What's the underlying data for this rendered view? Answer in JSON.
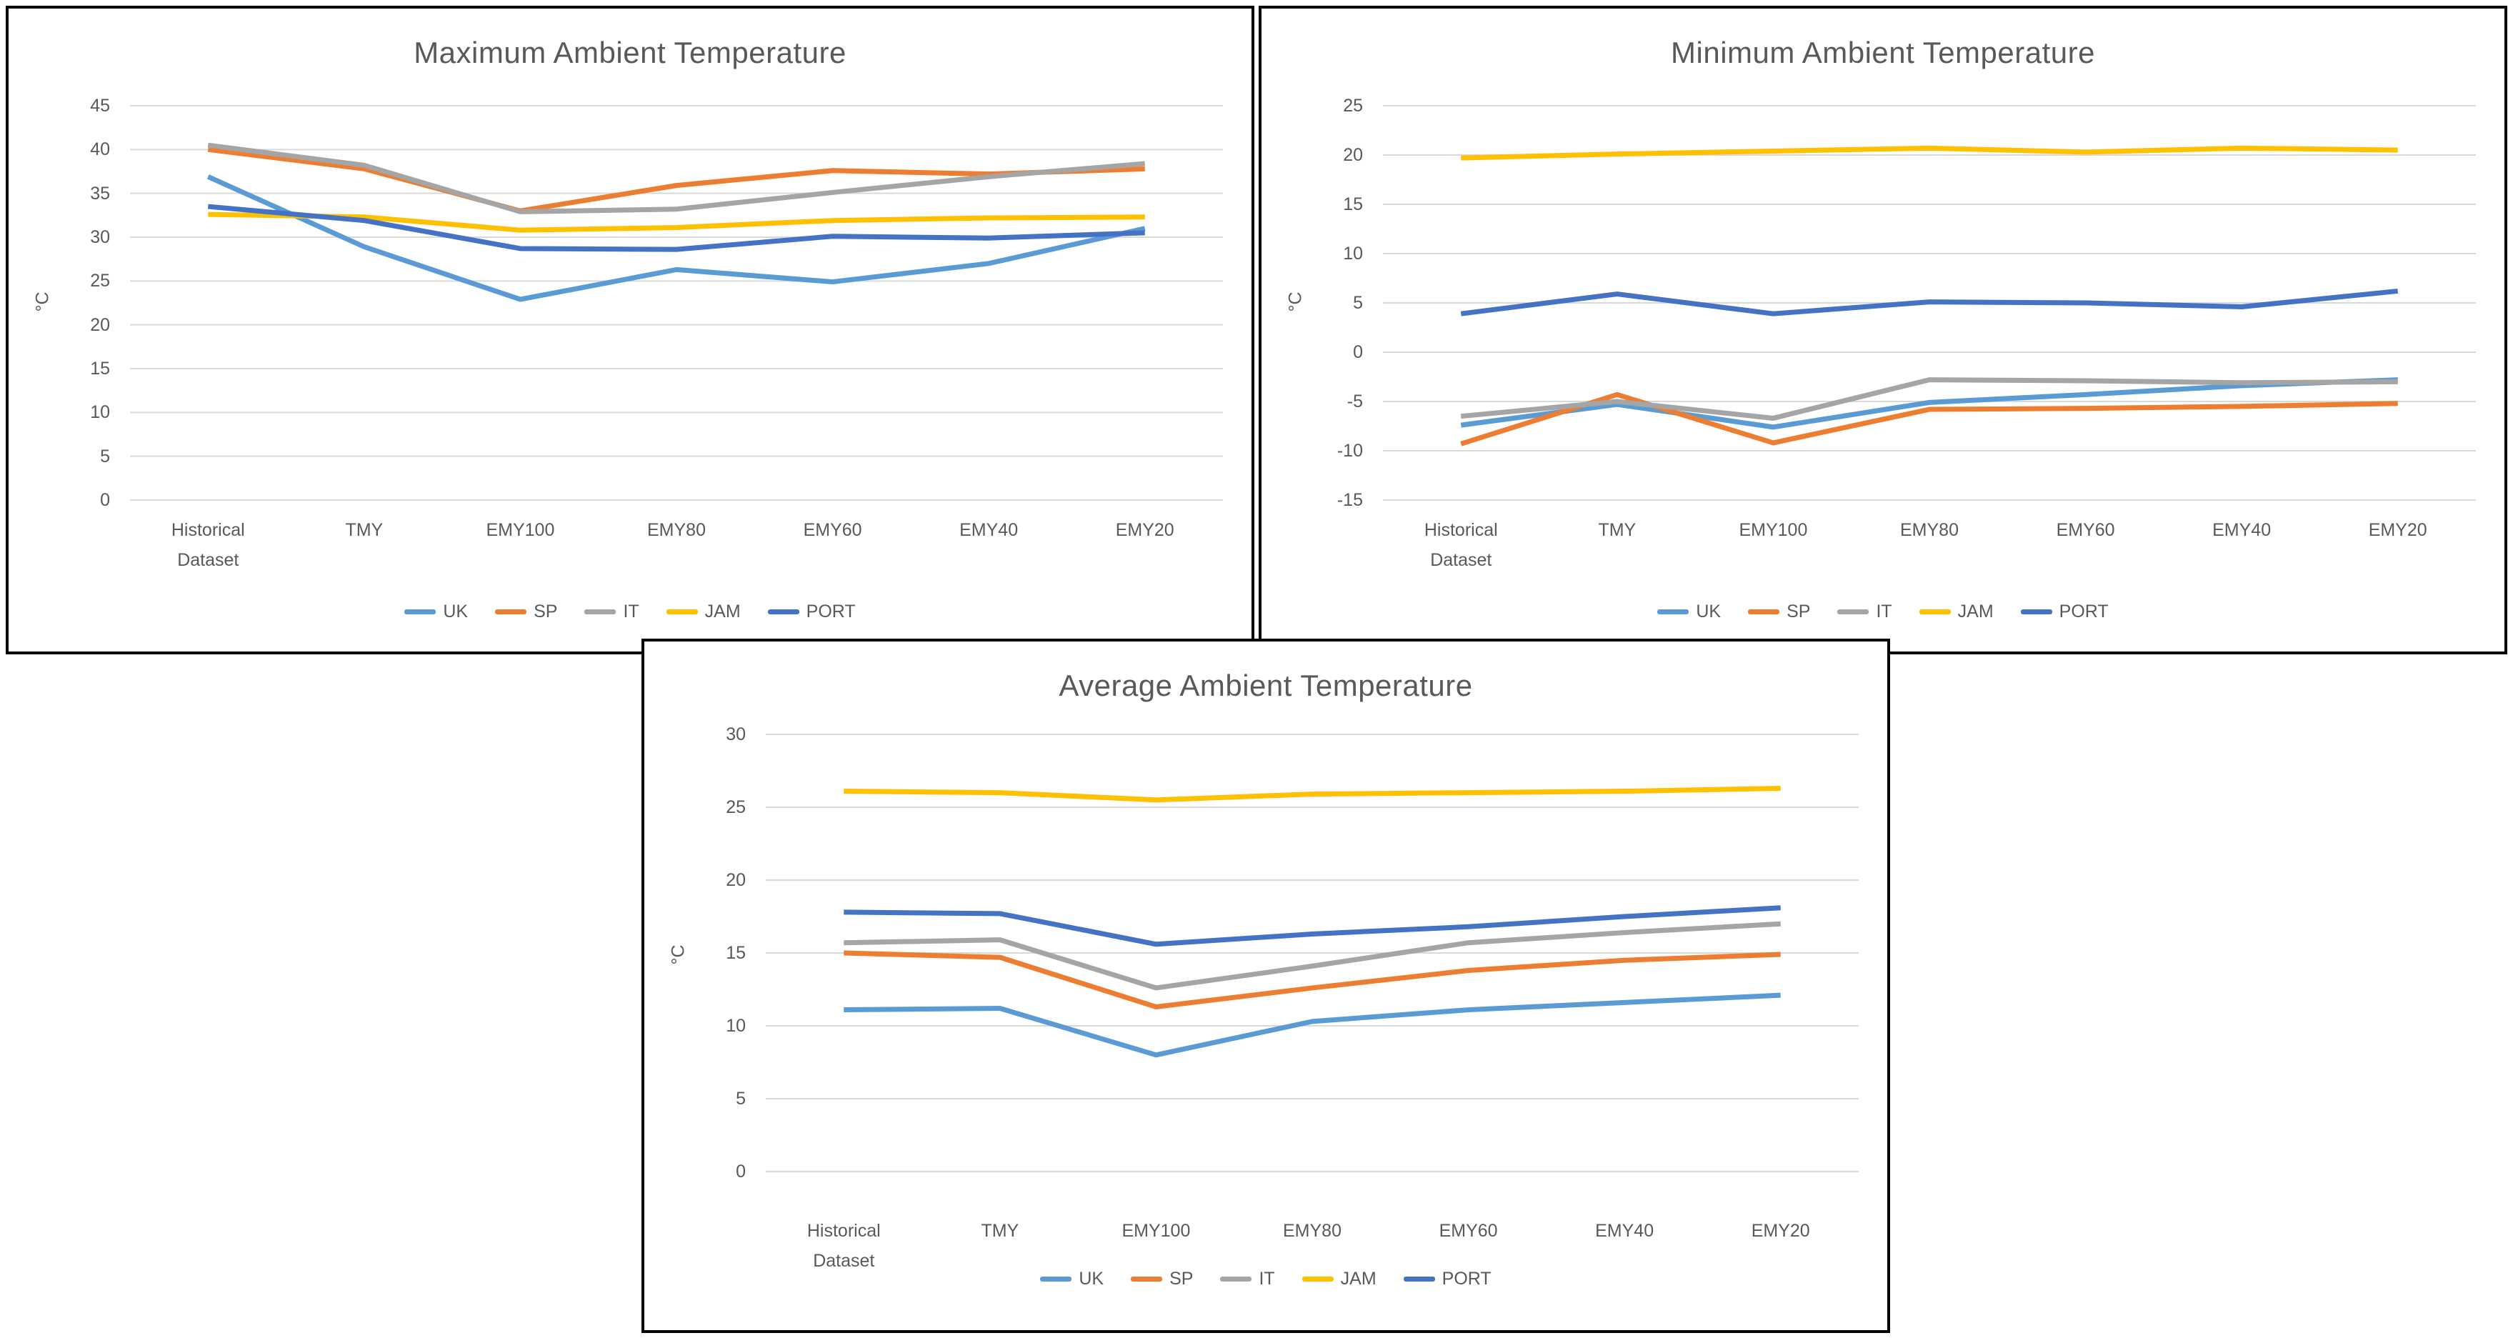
{
  "colors": {
    "background": "#FFFFFF",
    "chart_border": "#000000",
    "title_text": "#595959",
    "axis_text": "#595959",
    "gridline": "#D9D9D9"
  },
  "chart_data": [
    {
      "id": "maximum",
      "type": "line",
      "title": "Maximum Ambient Temperature",
      "xlabel": "",
      "ylabel": "°C",
      "ylim": [
        0,
        45
      ],
      "y_step": 5,
      "y_ticks": [
        45,
        40,
        35,
        30,
        25,
        20,
        15,
        10,
        5,
        0
      ],
      "grid": true,
      "legend_position": "bottom",
      "categories": [
        "Historical Dataset",
        "TMY",
        "EMY100",
        "EMY80",
        "EMY60",
        "EMY40",
        "EMY20"
      ],
      "series": [
        {
          "name": "UK",
          "color": "#5B9BD5",
          "values": [
            36.9,
            28.9,
            22.9,
            26.3,
            24.9,
            27.0,
            31.0
          ]
        },
        {
          "name": "SP",
          "color": "#ED7D31",
          "values": [
            40.0,
            37.8,
            33.0,
            35.9,
            37.6,
            37.2,
            37.8
          ]
        },
        {
          "name": "IT",
          "color": "#A5A5A5",
          "values": [
            40.5,
            38.2,
            32.9,
            33.2,
            35.1,
            36.9,
            38.4
          ]
        },
        {
          "name": "JAM",
          "color": "#FFC000",
          "values": [
            32.6,
            32.3,
            30.8,
            31.1,
            31.9,
            32.2,
            32.3
          ]
        },
        {
          "name": "PORT",
          "color": "#4472C4",
          "values": [
            33.5,
            31.9,
            28.7,
            28.6,
            30.1,
            29.9,
            30.5
          ]
        }
      ]
    },
    {
      "id": "minimum",
      "type": "line",
      "title": "Minimum Ambient Temperature",
      "xlabel": "",
      "ylabel": "°C",
      "ylim": [
        -15,
        25
      ],
      "y_step": 5,
      "y_ticks": [
        25,
        20,
        15,
        10,
        5,
        0,
        -5,
        -10,
        -15
      ],
      "grid": true,
      "legend_position": "bottom",
      "categories": [
        "Historical Dataset",
        "TMY",
        "EMY100",
        "EMY80",
        "EMY60",
        "EMY40",
        "EMY20"
      ],
      "series": [
        {
          "name": "UK",
          "color": "#5B9BD5",
          "values": [
            -7.4,
            -5.3,
            -7.6,
            -5.1,
            -4.3,
            -3.4,
            -2.8
          ]
        },
        {
          "name": "SP",
          "color": "#ED7D31",
          "values": [
            -9.3,
            -4.3,
            -9.2,
            -5.8,
            -5.7,
            -5.5,
            -5.2
          ]
        },
        {
          "name": "IT",
          "color": "#A5A5A5",
          "values": [
            -6.5,
            -5.0,
            -6.7,
            -2.8,
            -2.9,
            -3.1,
            -3.0
          ]
        },
        {
          "name": "JAM",
          "color": "#FFC000",
          "values": [
            19.7,
            20.1,
            20.4,
            20.7,
            20.3,
            20.7,
            20.5
          ]
        },
        {
          "name": "PORT",
          "color": "#4472C4",
          "values": [
            3.9,
            5.9,
            3.9,
            5.1,
            5.0,
            4.6,
            6.2
          ]
        }
      ]
    },
    {
      "id": "average",
      "type": "line",
      "title": "Average Ambient Temperature",
      "xlabel": "",
      "ylabel": "°C",
      "ylim": [
        0,
        30
      ],
      "y_step": 5,
      "y_ticks": [
        30,
        25,
        20,
        15,
        10,
        5,
        0
      ],
      "grid": true,
      "legend_position": "bottom",
      "categories": [
        "Historical Dataset",
        "TMY",
        "EMY100",
        "EMY80",
        "EMY60",
        "EMY40",
        "EMY20"
      ],
      "series": [
        {
          "name": "UK",
          "color": "#5B9BD5",
          "values": [
            11.1,
            11.2,
            8.0,
            10.3,
            11.1,
            11.6,
            12.1
          ]
        },
        {
          "name": "SP",
          "color": "#ED7D31",
          "values": [
            15.0,
            14.7,
            11.3,
            12.6,
            13.8,
            14.5,
            14.9
          ]
        },
        {
          "name": "IT",
          "color": "#A5A5A5",
          "values": [
            15.7,
            15.9,
            12.6,
            14.1,
            15.7,
            16.4,
            17.0
          ]
        },
        {
          "name": "JAM",
          "color": "#FFC000",
          "values": [
            26.1,
            26.0,
            25.5,
            25.9,
            26.0,
            26.1,
            26.3
          ]
        },
        {
          "name": "PORT",
          "color": "#4472C4",
          "values": [
            17.8,
            17.7,
            15.6,
            16.3,
            16.8,
            17.5,
            18.1
          ]
        }
      ]
    }
  ]
}
